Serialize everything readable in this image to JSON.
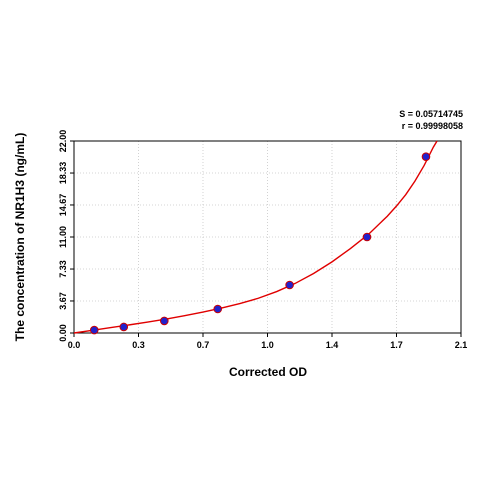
{
  "chart_data": {
    "type": "scatter",
    "title": "",
    "xlabel": "Corrected OD",
    "ylabel": "The concentration of NR1H3 (ng/mL)",
    "xlim": [
      0.0,
      2.1
    ],
    "ylim": [
      0.0,
      22.0
    ],
    "x_ticks": [
      "0.0",
      "0.3",
      "0.7",
      "1.0",
      "1.4",
      "1.7",
      "2.1"
    ],
    "x_tick_values": [
      0.0,
      0.35,
      0.7,
      1.05,
      1.4,
      1.75,
      2.1
    ],
    "y_ticks": [
      "0.00",
      "3.67",
      "7.33",
      "11.00",
      "14.67",
      "18.33",
      "22.00"
    ],
    "y_tick_values": [
      0.0,
      3.67,
      7.33,
      11.0,
      14.67,
      18.33,
      22.0
    ],
    "grid": true,
    "series": [
      {
        "points": [
          {
            "x": 0.11,
            "y": 0.34
          },
          {
            "x": 0.27,
            "y": 0.69
          },
          {
            "x": 0.49,
            "y": 1.38
          },
          {
            "x": 0.78,
            "y": 2.75
          },
          {
            "x": 1.17,
            "y": 5.5
          },
          {
            "x": 1.59,
            "y": 11.0
          },
          {
            "x": 1.91,
            "y": 20.2
          }
        ]
      }
    ],
    "fit_curve": {
      "points": [
        [
          0.0,
          0.0
        ],
        [
          0.1,
          0.31
        ],
        [
          0.2,
          0.62
        ],
        [
          0.3,
          0.93
        ],
        [
          0.4,
          1.25
        ],
        [
          0.5,
          1.6
        ],
        [
          0.6,
          1.98
        ],
        [
          0.7,
          2.4
        ],
        [
          0.8,
          2.86
        ],
        [
          0.9,
          3.37
        ],
        [
          1.0,
          3.98
        ],
        [
          1.1,
          4.75
        ],
        [
          1.2,
          5.68
        ],
        [
          1.3,
          6.82
        ],
        [
          1.4,
          8.15
        ],
        [
          1.5,
          9.68
        ],
        [
          1.6,
          11.35
        ],
        [
          1.7,
          13.38
        ],
        [
          1.75,
          14.55
        ],
        [
          1.8,
          15.85
        ],
        [
          1.85,
          17.4
        ],
        [
          1.9,
          19.2
        ],
        [
          1.95,
          21.3
        ],
        [
          1.97,
          22.0
        ]
      ]
    },
    "annotations": {
      "s_value": "S = 0.05714745",
      "r_value": "r = 0.99998058"
    },
    "colors": {
      "curve": "#e00000",
      "marker_fill": "#2222cc",
      "marker_stroke": "#cc0000",
      "grid": "#c8c8c8",
      "axis": "#000000"
    }
  }
}
